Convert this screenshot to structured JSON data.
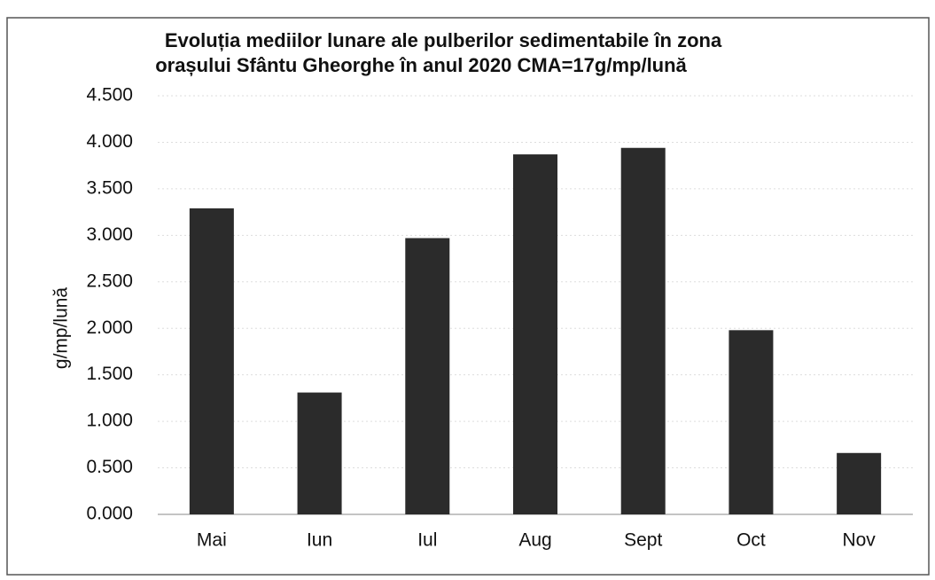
{
  "chart_data": {
    "type": "bar",
    "title": [
      "Evoluția mediilor lunare ale pulberilor sedimentabile în zona",
      "orașului Sfântu Gheorghe în anul 2020     CMA=17g/mp/lună"
    ],
    "y_label": "g/mp/lună",
    "categories": [
      "Mai",
      "Iun",
      "Iul",
      "Aug",
      "Sept",
      "Oct",
      "Nov"
    ],
    "values": [
      3.29,
      1.31,
      2.97,
      3.87,
      3.94,
      1.98,
      0.66
    ],
    "color": "#2b2b2b",
    "ylim": [
      0,
      4.5
    ],
    "yticks": [
      {
        "value": 0,
        "label": "0.000"
      },
      {
        "value": 0.5,
        "label": "0.500"
      },
      {
        "value": 1,
        "label": "1.000"
      },
      {
        "value": 1.5,
        "label": "1.500"
      },
      {
        "value": 2,
        "label": "2.000"
      },
      {
        "value": 2.5,
        "label": "2.500"
      },
      {
        "value": 3,
        "label": "3.000"
      },
      {
        "value": 3.5,
        "label": "3.500"
      },
      {
        "value": 4,
        "label": "4.000"
      },
      {
        "value": 4.5,
        "label": "4.500"
      }
    ],
    "grid": true
  }
}
